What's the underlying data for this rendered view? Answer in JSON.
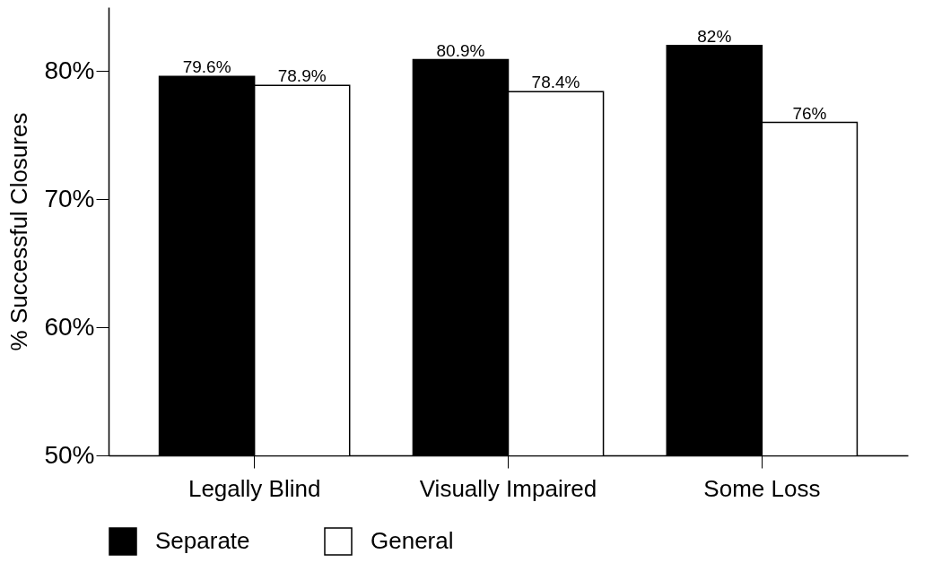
{
  "chart_data": {
    "type": "bar",
    "ylabel": "% Successful Closures",
    "categories": [
      "Legally Blind",
      "Visually Impaired",
      "Some Loss"
    ],
    "series": [
      {
        "name": "Separate",
        "color": "#000000",
        "values": [
          79.6,
          80.9,
          82
        ],
        "value_labels": [
          "79.6%",
          "80.9%",
          "82%"
        ]
      },
      {
        "name": "General",
        "color": "#ffffff",
        "values": [
          78.9,
          78.4,
          76
        ],
        "value_labels": [
          "78.9%",
          "78.4%",
          "76%"
        ]
      }
    ],
    "ylim": [
      50,
      85
    ],
    "yticks": [
      {
        "value": 50,
        "label": "50%"
      },
      {
        "value": 60,
        "label": "60%"
      },
      {
        "value": 70,
        "label": "70%"
      },
      {
        "value": 80,
        "label": "80%"
      }
    ],
    "grid": false,
    "legend": "bottom"
  }
}
